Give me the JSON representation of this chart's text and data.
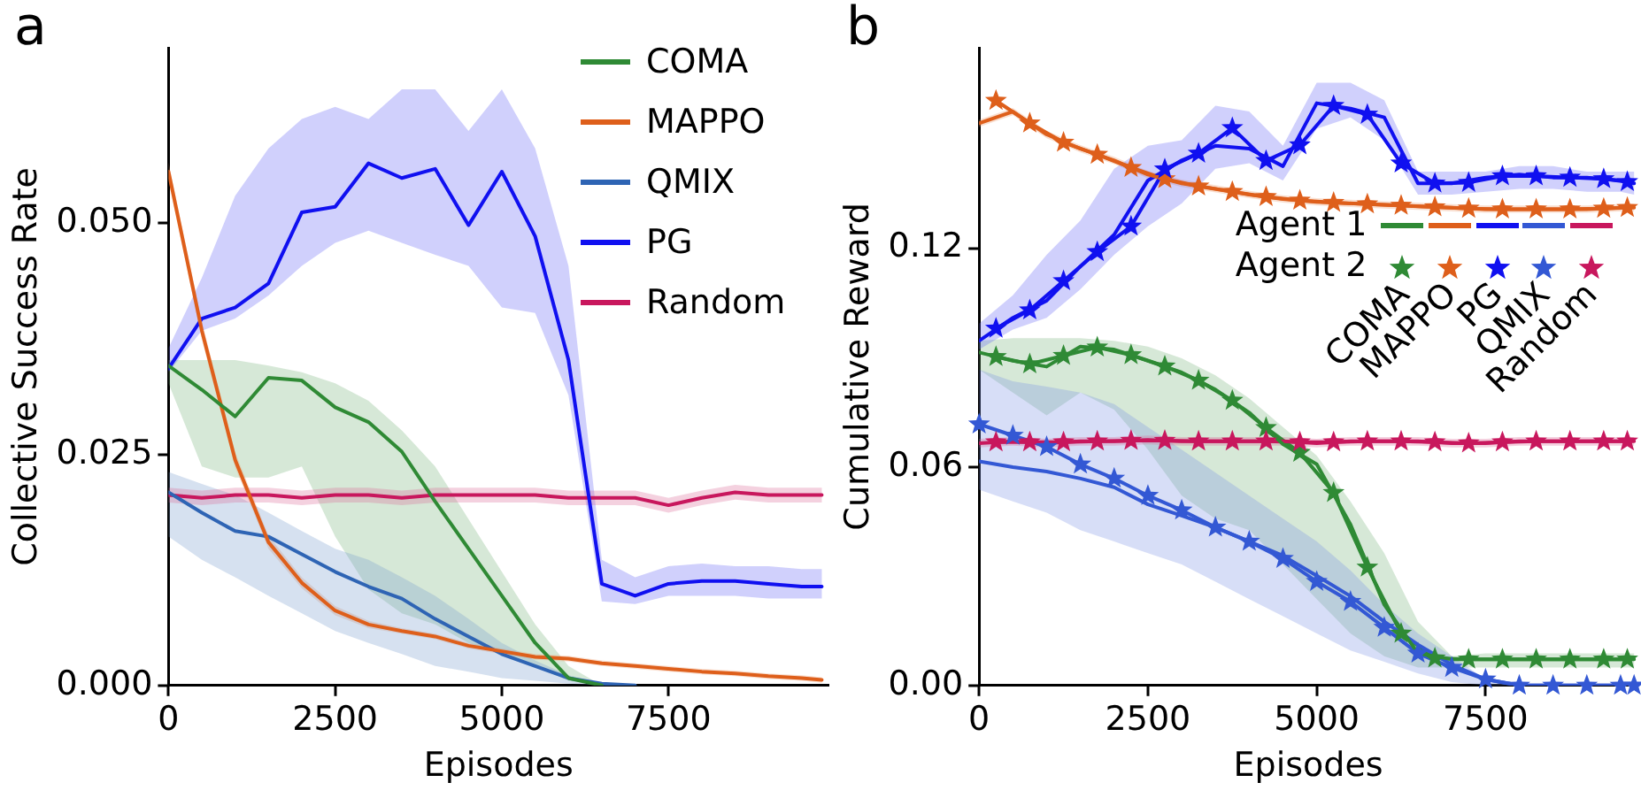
{
  "chart_data": [
    {
      "type": "line",
      "title": "a",
      "xlabel": "Episodes",
      "ylabel": "Collective Success Rate",
      "legend": "top right",
      "x": [
        0,
        500,
        1000,
        1500,
        2000,
        2500,
        3000,
        3500,
        4000,
        4500,
        5000,
        5500,
        6000,
        6500,
        7000,
        7500,
        8000,
        8500,
        9000,
        9500,
        9800
      ],
      "xlim": [
        0,
        9900
      ],
      "ylim": [
        0,
        0.069
      ],
      "xticks": [
        0,
        2500,
        5000,
        7500
      ],
      "yticks": [
        {
          "value": 0,
          "label": "0.000"
        },
        {
          "value": 0.025,
          "label": "0.025"
        },
        {
          "value": 0.05,
          "label": "0.050"
        }
      ],
      "series": [
        {
          "name": "COMA",
          "color": "#2f8a35",
          "values": [
            0.0346,
            0.032,
            0.0291,
            0.0333,
            0.033,
            0.0301,
            0.0285,
            0.0253,
            0.0199,
            0.0148,
            0.0097,
            0.0046,
            0.0008,
            0,
            null,
            null,
            null,
            null,
            null,
            null,
            null
          ],
          "upper": [
            0.0352,
            0.0352,
            0.0352,
            0.0346,
            0.0339,
            0.0327,
            0.0308,
            0.0276,
            0.0237,
            0.018,
            0.0123,
            0.0066,
            0.0021,
            0,
            null,
            null,
            null,
            null,
            null,
            null,
            null
          ],
          "lower": [
            0.0327,
            0.0237,
            0.0225,
            0.0225,
            0.0237,
            0.0161,
            0.0104,
            0.0078,
            0.0066,
            0.0046,
            0.0034,
            0.0021,
            0.0005,
            0,
            null,
            null,
            null,
            null,
            null,
            null,
            null
          ]
        },
        {
          "name": "MAPPO",
          "color": "#de5f1b",
          "values": [
            0.0556,
            0.0384,
            0.0244,
            0.0155,
            0.0111,
            0.0081,
            0.0066,
            0.0059,
            0.0053,
            0.0043,
            0.0037,
            0.0031,
            0.0029,
            0.0024,
            0.0021,
            0.0018,
            0.0015,
            0.0013,
            0.001,
            0.0008,
            0.0006
          ],
          "upper": [
            0.0566,
            0.0394,
            0.0252,
            0.0162,
            0.0117,
            0.0086,
            0.007,
            0.0062,
            0.0056,
            0.0046,
            0.004,
            0.0034,
            0.0032,
            0.0027,
            0.0024,
            0.0021,
            0.0018,
            0.0016,
            0.0013,
            0.0011,
            0.0009
          ],
          "lower": [
            0.0546,
            0.0374,
            0.0236,
            0.0148,
            0.0105,
            0.0076,
            0.0062,
            0.0056,
            0.005,
            0.004,
            0.0034,
            0.0028,
            0.0026,
            0.0021,
            0.0018,
            0.0015,
            0.0012,
            0.001,
            0.0007,
            0.0005,
            0.0003
          ]
        },
        {
          "name": "QMIX",
          "color": "#2e64b4",
          "values": [
            0.0209,
            0.0187,
            0.0167,
            0.0161,
            0.0142,
            0.0123,
            0.0107,
            0.0094,
            0.0072,
            0.0053,
            0.0034,
            0.0021,
            0.0008,
            0.0002,
            0,
            null,
            null,
            null,
            null,
            null,
            null
          ],
          "upper": [
            0.0231,
            0.0218,
            0.0206,
            0.0187,
            0.0167,
            0.0148,
            0.0136,
            0.0117,
            0.0097,
            0.0072,
            0.0046,
            0.0027,
            0.0011,
            0.0002,
            0,
            null,
            null,
            null,
            null,
            null,
            null
          ],
          "lower": [
            0.0161,
            0.0136,
            0.0117,
            0.0097,
            0.0078,
            0.0059,
            0.0046,
            0.0034,
            0.0021,
            0.0015,
            0.0008,
            0.0005,
            0.0002,
            0,
            0,
            null,
            null,
            null,
            null,
            null,
            null
          ]
        },
        {
          "name": "PG",
          "color": "#1010f0",
          "values": [
            0.0343,
            0.0397,
            0.0409,
            0.0435,
            0.0512,
            0.0518,
            0.0565,
            0.0549,
            0.0559,
            0.0498,
            0.0556,
            0.0486,
            0.0352,
            0.011,
            0.0097,
            0.011,
            0.0113,
            0.0113,
            0.011,
            0.0107,
            0.0107
          ],
          "upper": [
            0.0365,
            0.0441,
            0.053,
            0.0581,
            0.0613,
            0.0626,
            0.0613,
            0.0645,
            0.0645,
            0.06,
            0.0645,
            0.0581,
            0.0454,
            0.0136,
            0.0117,
            0.0129,
            0.0132,
            0.0129,
            0.0129,
            0.0126,
            0.0126
          ],
          "lower": [
            0.0339,
            0.0384,
            0.0397,
            0.0422,
            0.0454,
            0.0479,
            0.0492,
            0.0479,
            0.0466,
            0.0454,
            0.0409,
            0.0403,
            0.0314,
            0.0091,
            0.0088,
            0.0097,
            0.0097,
            0.0097,
            0.0094,
            0.0094,
            0.0094
          ]
        },
        {
          "name": "Random",
          "color": "#c8175d",
          "values": [
            0.0206,
            0.0203,
            0.0206,
            0.0206,
            0.0203,
            0.0206,
            0.0206,
            0.0203,
            0.0206,
            0.0206,
            0.0206,
            0.0206,
            0.0203,
            0.0203,
            0.0203,
            0.0195,
            0.0203,
            0.0209,
            0.0206,
            0.0206,
            0.0206
          ],
          "upper": [
            0.0214,
            0.0211,
            0.0214,
            0.0214,
            0.0211,
            0.0214,
            0.0214,
            0.0211,
            0.0214,
            0.0214,
            0.0214,
            0.0214,
            0.0211,
            0.0211,
            0.0211,
            0.0203,
            0.0211,
            0.0217,
            0.0214,
            0.0214,
            0.0214
          ],
          "lower": [
            0.0198,
            0.0195,
            0.0198,
            0.0198,
            0.0195,
            0.0198,
            0.0198,
            0.0195,
            0.0198,
            0.0198,
            0.0198,
            0.0198,
            0.0195,
            0.0195,
            0.0195,
            0.0187,
            0.0195,
            0.0201,
            0.0198,
            0.0198,
            0.0198
          ]
        }
      ]
    },
    {
      "type": "line",
      "title": "b",
      "xlabel": "Episodes",
      "ylabel": "Cumulative Reward",
      "legend": "right",
      "annotations": [
        "Agent 1",
        "Agent 2"
      ],
      "x": [
        0,
        500,
        1000,
        1500,
        2000,
        2500,
        3000,
        3500,
        4000,
        4500,
        5000,
        5500,
        6000,
        6500,
        7000,
        7500,
        8000,
        8500,
        9000,
        9500,
        9700
      ],
      "xlim": [
        0,
        9750
      ],
      "ylim": [
        0,
        0.175
      ],
      "xticks": [
        0,
        2500,
        5000,
        7500
      ],
      "yticks": [
        {
          "value": 0,
          "label": "0.00"
        },
        {
          "value": 0.06,
          "label": "0.06"
        },
        {
          "value": 0.12,
          "label": "0.12"
        }
      ],
      "series": [
        {
          "name": "COMA",
          "color": "#2f8a35",
          "marker": "none",
          "values": [
            0.0914,
            0.0891,
            0.0875,
            0.093,
            0.0922,
            0.0891,
            0.0859,
            0.0812,
            0.0749,
            0.0662,
            0.0607,
            0.0442,
            0.0222,
            0.0088,
            0.0072,
            0.0072,
            0.0072,
            0.0072,
            0.0072,
            0.0072,
            0.0072
          ],
          "upper": [
            0.0946,
            0.0953,
            0.0953,
            0.0953,
            0.0946,
            0.093,
            0.0898,
            0.0851,
            0.0788,
            0.0709,
            0.0631,
            0.0505,
            0.0363,
            0.0175,
            0.008,
            0.0088,
            0.0088,
            0.0088,
            0.0088,
            0.0088,
            0.0088
          ],
          "lower": [
            0.0867,
            0.0804,
            0.0741,
            0.0804,
            0.0757,
            0.0647,
            0.0521,
            0.0458,
            0.0426,
            0.0332,
            0.0237,
            0.0143,
            0.008,
            0.0049,
            0.0049,
            0.0049,
            0.0049,
            0.0049,
            0.0049,
            0.0049,
            0.0049
          ]
        },
        {
          "name": "MAPPO",
          "color": "#de5f1b",
          "marker": "none",
          "values": [
            0.1543,
            0.1575,
            0.1512,
            0.1473,
            0.1441,
            0.1402,
            0.1378,
            0.1363,
            0.1347,
            0.1335,
            0.1327,
            0.1323,
            0.1319,
            0.1315,
            0.1311,
            0.1307,
            0.1307,
            0.1307,
            0.1307,
            0.1311,
            0.1311
          ],
          "upper": [
            0.1553,
            0.1585,
            0.1522,
            0.1483,
            0.1451,
            0.1412,
            0.1388,
            0.1373,
            0.1357,
            0.1345,
            0.1337,
            0.1333,
            0.1329,
            0.1325,
            0.1321,
            0.1317,
            0.1317,
            0.1317,
            0.1317,
            0.1321,
            0.1321
          ],
          "lower": [
            0.1533,
            0.1565,
            0.1502,
            0.1463,
            0.1431,
            0.1392,
            0.1368,
            0.1353,
            0.1337,
            0.1325,
            0.1317,
            0.1313,
            0.1309,
            0.1305,
            0.1301,
            0.1297,
            0.1297,
            0.1297,
            0.1297,
            0.1301,
            0.1301
          ]
        },
        {
          "name": "PG",
          "color": "#1010f0",
          "marker": "none",
          "values": [
            0.0946,
            0.1009,
            0.1056,
            0.115,
            0.1237,
            0.1386,
            0.1441,
            0.1481,
            0.1473,
            0.1425,
            0.1598,
            0.1583,
            0.1559,
            0.1378,
            0.1378,
            0.1394,
            0.1402,
            0.1394,
            0.1394,
            0.1386,
            0.1378
          ],
          "upper": [
            0.0993,
            0.1071,
            0.1182,
            0.1276,
            0.1418,
            0.1481,
            0.1496,
            0.1591,
            0.1575,
            0.1481,
            0.1654,
            0.1654,
            0.1606,
            0.141,
            0.141,
            0.141,
            0.1425,
            0.1425,
            0.141,
            0.141,
            0.141
          ],
          "lower": [
            0.0922,
            0.0977,
            0.1009,
            0.1087,
            0.1182,
            0.126,
            0.1323,
            0.1418,
            0.1433,
            0.1386,
            0.1528,
            0.1559,
            0.1496,
            0.1347,
            0.1347,
            0.1355,
            0.1363,
            0.1363,
            0.1355,
            0.1355,
            0.1347
          ]
        },
        {
          "name": "QMIX",
          "color": "#3358d4",
          "marker": "none",
          "values": [
            0.0615,
            0.0599,
            0.0587,
            0.0568,
            0.0544,
            0.0497,
            0.0466,
            0.0434,
            0.0395,
            0.0356,
            0.0301,
            0.0245,
            0.0175,
            0.0112,
            0.0057,
            0.0017,
            0,
            0,
            0,
            0,
            0
          ],
          "upper": [
            0.0867,
            0.0835,
            0.082,
            0.0804,
            0.0772,
            0.0709,
            0.0647,
            0.0584,
            0.0521,
            0.0458,
            0.0395,
            0.0316,
            0.0222,
            0.0143,
            0.008,
            0.0017,
            0,
            0,
            0,
            0,
            0
          ],
          "lower": [
            0.0537,
            0.0505,
            0.0474,
            0.0426,
            0.0395,
            0.0363,
            0.0332,
            0.0285,
            0.0237,
            0.019,
            0.0143,
            0.0096,
            0.0065,
            0.0033,
            0.0009,
            0,
            0,
            0,
            0,
            0,
            0
          ]
        },
        {
          "name": "Random",
          "color": "#c8175d",
          "marker": "none",
          "values": [
            0.0665,
            0.067,
            0.0665,
            0.067,
            0.067,
            0.0674,
            0.067,
            0.067,
            0.067,
            0.067,
            0.0665,
            0.067,
            0.067,
            0.067,
            0.0665,
            0.0665,
            0.067,
            0.067,
            0.067,
            0.067,
            0.067
          ],
          "upper": [
            0.0677,
            0.0682,
            0.0677,
            0.0682,
            0.0682,
            0.0686,
            0.0682,
            0.0682,
            0.0682,
            0.0682,
            0.0677,
            0.0682,
            0.0682,
            0.0682,
            0.0677,
            0.0677,
            0.0682,
            0.0682,
            0.0682,
            0.0682,
            0.0682
          ],
          "lower": [
            0.0653,
            0.0658,
            0.0653,
            0.0658,
            0.0658,
            0.0662,
            0.0658,
            0.0658,
            0.0658,
            0.0658,
            0.0653,
            0.0658,
            0.0658,
            0.0658,
            0.0653,
            0.0653,
            0.0658,
            0.0658,
            0.0658,
            0.0658,
            0.0658
          ]
        },
        {
          "color": "#2f8a35",
          "marker": "star",
          "x": [
            250,
            750,
            1250,
            1750,
            2250,
            2750,
            3250,
            3750,
            4250,
            4750,
            5250,
            5750,
            6250,
            6750,
            7250,
            7750,
            8250,
            8750,
            9250,
            9600
          ],
          "values": [
            0.0902,
            0.0882,
            0.0905,
            0.0928,
            0.0907,
            0.0876,
            0.0837,
            0.0782,
            0.0707,
            0.0639,
            0.0529,
            0.0324,
            0.0143,
            0.0075,
            0.0072,
            0.0072,
            0.0072,
            0.0072,
            0.0072,
            0.0072
          ]
        },
        {
          "color": "#de5f1b",
          "marker": "star",
          "x": [
            250,
            750,
            1250,
            1750,
            2250,
            2750,
            3250,
            3750,
            4250,
            4750,
            5250,
            5750,
            6250,
            6750,
            7250,
            7750,
            8250,
            8750,
            9250,
            9600
          ],
          "values": [
            0.1605,
            0.1543,
            0.149,
            0.1457,
            0.1421,
            0.139,
            0.137,
            0.1355,
            0.1341,
            0.1331,
            0.1325,
            0.1321,
            0.1317,
            0.1313,
            0.1309,
            0.1307,
            0.1307,
            0.1307,
            0.1309,
            0.1311
          ]
        },
        {
          "color": "#1010f0",
          "marker": "star",
          "x": [
            250,
            750,
            1250,
            1750,
            2250,
            2750,
            3250,
            3750,
            4250,
            4750,
            5250,
            5750,
            6250,
            6750,
            7250,
            7750,
            8250,
            8750,
            9250,
            9600
          ],
          "values": [
            0.098,
            0.103,
            0.111,
            0.119,
            0.126,
            0.1417,
            0.146,
            0.153,
            0.144,
            0.1483,
            0.1591,
            0.1567,
            0.1433,
            0.1378,
            0.138,
            0.1398,
            0.1398,
            0.1394,
            0.139,
            0.1382
          ]
        },
        {
          "color": "#3358d4",
          "marker": "star",
          "values": [
            0.0717,
            0.0686,
            0.0655,
            0.0607,
            0.0568,
            0.0521,
            0.0481,
            0.0434,
            0.0395,
            0.0348,
            0.0285,
            0.023,
            0.0159,
            0.0088,
            0.0049,
            0.0017,
            0,
            0,
            0,
            0,
            0
          ]
        },
        {
          "color": "#c8175d",
          "marker": "star",
          "x": [
            250,
            750,
            1250,
            1750,
            2250,
            2750,
            3250,
            3750,
            4250,
            4750,
            5250,
            5750,
            6250,
            6750,
            7250,
            7750,
            8250,
            8750,
            9250,
            9600
          ],
          "values": [
            0.0668,
            0.0668,
            0.0668,
            0.067,
            0.0672,
            0.0672,
            0.067,
            0.067,
            0.067,
            0.0668,
            0.0668,
            0.067,
            0.067,
            0.0668,
            0.0665,
            0.0668,
            0.067,
            0.067,
            0.067,
            0.067
          ]
        }
      ]
    }
  ]
}
